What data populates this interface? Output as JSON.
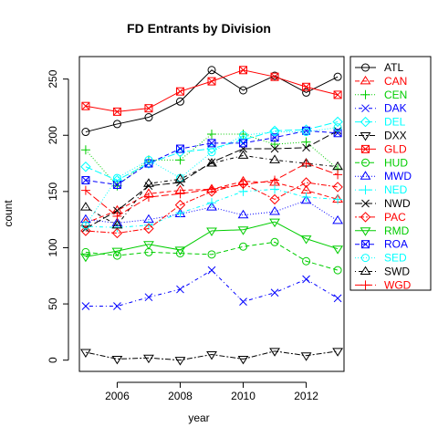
{
  "chart_data": {
    "type": "line",
    "title": "FD Entrants by Division",
    "xlabel": "year",
    "ylabel": "count",
    "xlim": [
      2004.8,
      2013.2
    ],
    "ylim": [
      -10,
      270
    ],
    "x_ticks": [
      2006,
      2008,
      2010,
      2012
    ],
    "y_ticks": [
      0,
      50,
      100,
      150,
      200,
      250
    ],
    "grid": false,
    "legend_position": "right",
    "x": [
      2005,
      2006,
      2007,
      2008,
      2009,
      2010,
      2011,
      2012,
      2013
    ],
    "series": [
      {
        "name": "ATL",
        "color": "#000000",
        "marker": "circle",
        "dash": "solid",
        "values": [
          203,
          210,
          216,
          230,
          258,
          240,
          253,
          238,
          252
        ]
      },
      {
        "name": "CAN",
        "color": "#ff0000",
        "marker": "triangle-up",
        "dash": "dashed",
        "values": [
          122,
          133,
          148,
          151,
          152,
          159,
          158,
          151,
          143
        ]
      },
      {
        "name": "CEN",
        "color": "#00cd00",
        "marker": "plus",
        "dash": "dotted",
        "values": [
          187,
          155,
          178,
          178,
          201,
          201,
          192,
          194,
          170
        ]
      },
      {
        "name": "DAK",
        "color": "#0000ff",
        "marker": "x",
        "dash": "dotdash",
        "values": [
          48,
          48,
          56,
          63,
          80,
          52,
          60,
          72,
          55
        ]
      },
      {
        "name": "DEL",
        "color": "#00ffff",
        "marker": "diamond",
        "dash": "longdash",
        "values": [
          172,
          160,
          175,
          185,
          188,
          196,
          204,
          205,
          212
        ]
      },
      {
        "name": "DXX",
        "color": "#000000",
        "marker": "triangle-down",
        "dash": "twodash",
        "values": [
          7,
          1,
          2,
          0,
          5,
          1,
          8,
          4,
          8
        ]
      },
      {
        "name": "GLD",
        "color": "#ff0000",
        "marker": "square-x",
        "dash": "solid",
        "values": [
          226,
          221,
          224,
          239,
          248,
          258,
          252,
          243,
          236
        ]
      },
      {
        "name": "HUD",
        "color": "#00cd00",
        "marker": "circle",
        "dash": "dashed",
        "values": [
          96,
          93,
          96,
          95,
          94,
          101,
          105,
          88,
          80
        ]
      },
      {
        "name": "MWD",
        "color": "#0000ff",
        "marker": "triangle-up",
        "dash": "dotted",
        "values": [
          125,
          122,
          125,
          130,
          136,
          129,
          132,
          142,
          124
        ]
      },
      {
        "name": "NED",
        "color": "#00ffff",
        "marker": "plus",
        "dash": "dotdash",
        "values": [
          119,
          118,
          120,
          131,
          140,
          150,
          152,
          145,
          143
        ]
      },
      {
        "name": "NWD",
        "color": "#000000",
        "marker": "x",
        "dash": "longdash",
        "values": [
          117,
          133,
          155,
          158,
          176,
          188,
          188,
          189,
          204
        ]
      },
      {
        "name": "PAC",
        "color": "#ff0000",
        "marker": "diamond",
        "dash": "twodash",
        "values": [
          115,
          113,
          117,
          138,
          150,
          157,
          143,
          158,
          154
        ]
      },
      {
        "name": "RMD",
        "color": "#00cd00",
        "marker": "triangle-down",
        "dash": "solid",
        "values": [
          92,
          97,
          103,
          98,
          115,
          116,
          123,
          108,
          99
        ]
      },
      {
        "name": "ROA",
        "color": "#0000ff",
        "marker": "square-x",
        "dash": "dashed",
        "values": [
          160,
          156,
          175,
          188,
          193,
          193,
          198,
          204,
          202
        ]
      },
      {
        "name": "SED",
        "color": "#00ffff",
        "marker": "circle",
        "dash": "dotted",
        "values": [
          120,
          162,
          178,
          162,
          185,
          200,
          203,
          203,
          207
        ]
      },
      {
        "name": "SWD",
        "color": "#000000",
        "marker": "triangle-up",
        "dash": "dotdash",
        "values": [
          136,
          120,
          157,
          161,
          175,
          182,
          178,
          175,
          172
        ]
      },
      {
        "name": "WGD",
        "color": "#ff0000",
        "marker": "plus",
        "dash": "longdash",
        "values": [
          151,
          128,
          145,
          148,
          152,
          156,
          160,
          175,
          165
        ]
      }
    ]
  }
}
